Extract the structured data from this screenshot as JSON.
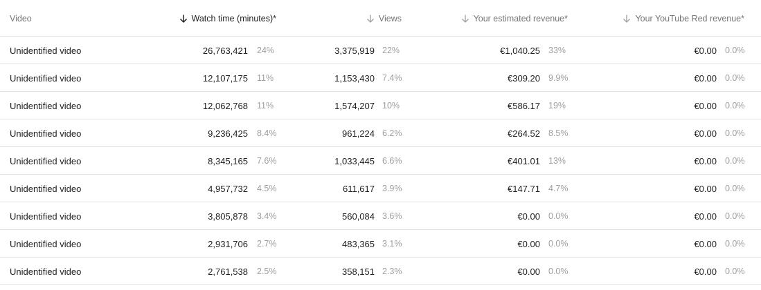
{
  "header": {
    "video": "Video",
    "watch_time": "Watch time (minutes)*",
    "views": "Views",
    "revenue": "Your estimated revenue*",
    "red_revenue": "Your YouTube Red revenue*"
  },
  "rows": [
    {
      "title": "Unidentified video",
      "watch": "26,763,421",
      "watch_pct": "24%",
      "views": "3,375,919",
      "views_pct": "22%",
      "revenue": "€1,040.25",
      "revenue_pct": "33%",
      "red": "€0.00",
      "red_pct": "0.0%"
    },
    {
      "title": "Unidentified video",
      "watch": "12,107,175",
      "watch_pct": "11%",
      "views": "1,153,430",
      "views_pct": "7.4%",
      "revenue": "€309.20",
      "revenue_pct": "9.9%",
      "red": "€0.00",
      "red_pct": "0.0%"
    },
    {
      "title": "Unidentified video",
      "watch": "12,062,768",
      "watch_pct": "11%",
      "views": "1,574,207",
      "views_pct": "10%",
      "revenue": "€586.17",
      "revenue_pct": "19%",
      "red": "€0.00",
      "red_pct": "0.0%"
    },
    {
      "title": "Unidentified video",
      "watch": "9,236,425",
      "watch_pct": "8.4%",
      "views": "961,224",
      "views_pct": "6.2%",
      "revenue": "€264.52",
      "revenue_pct": "8.5%",
      "red": "€0.00",
      "red_pct": "0.0%"
    },
    {
      "title": "Unidentified video",
      "watch": "8,345,165",
      "watch_pct": "7.6%",
      "views": "1,033,445",
      "views_pct": "6.6%",
      "revenue": "€401.01",
      "revenue_pct": "13%",
      "red": "€0.00",
      "red_pct": "0.0%"
    },
    {
      "title": "Unidentified video",
      "watch": "4,957,732",
      "watch_pct": "4.5%",
      "views": "611,617",
      "views_pct": "3.9%",
      "revenue": "€147.71",
      "revenue_pct": "4.7%",
      "red": "€0.00",
      "red_pct": "0.0%"
    },
    {
      "title": "Unidentified video",
      "watch": "3,805,878",
      "watch_pct": "3.4%",
      "views": "560,084",
      "views_pct": "3.6%",
      "revenue": "€0.00",
      "revenue_pct": "0.0%",
      "red": "€0.00",
      "red_pct": "0.0%"
    },
    {
      "title": "Unidentified video",
      "watch": "2,931,706",
      "watch_pct": "2.7%",
      "views": "483,365",
      "views_pct": "3.1%",
      "revenue": "€0.00",
      "revenue_pct": "0.0%",
      "red": "€0.00",
      "red_pct": "0.0%"
    },
    {
      "title": "Unidentified video",
      "watch": "2,761,538",
      "watch_pct": "2.5%",
      "views": "358,151",
      "views_pct": "2.3%",
      "revenue": "€0.00",
      "revenue_pct": "0.0%",
      "red": "€0.00",
      "red_pct": "0.0%"
    }
  ],
  "icons": {
    "sort_active": "arrow-down-icon",
    "sort_inactive": "arrow-down-icon"
  },
  "colors": {
    "text": "#212121",
    "muted": "#757575",
    "pct": "#9e9e9e",
    "divider": "#e0e0e0"
  }
}
